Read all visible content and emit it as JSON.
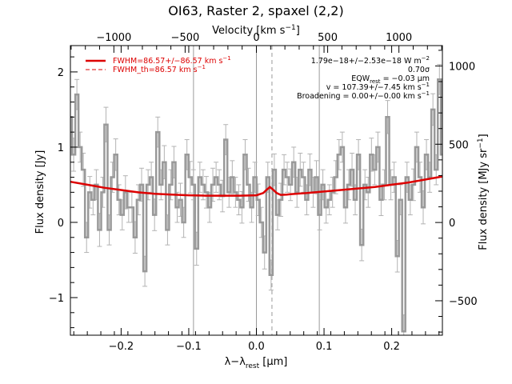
{
  "chart_data": {
    "type": "line",
    "title": "OI63, Raster 2, spaxel (2,2)",
    "xlabel": "λ−λ",
    "xlabel_sub": "rest",
    "xlabel_unit": " [μm]",
    "ylabel": "Flux density [Jy]",
    "x2label": "Velocity [km s",
    "x2label_sup": "−1",
    "x2label_end": "]",
    "y2label": "Flux density [MJy sr",
    "y2label_sup": "−1",
    "y2label_end": "]",
    "xlim": [
      -0.275,
      0.275
    ],
    "ylim": [
      -1.5,
      2.35
    ],
    "y2lim": [
      -720,
      1130
    ],
    "x2lim": [
      -1305,
      1305
    ],
    "grid": false,
    "x_ticks": [
      "−0.2",
      "−0.1",
      "0.0",
      "0.1",
      "0.2"
    ],
    "x_tick_values": [
      -0.2,
      -0.1,
      0.0,
      0.1,
      0.2
    ],
    "y_ticks": [
      "−1",
      "0",
      "1",
      "2"
    ],
    "y_tick_values": [
      -1,
      0,
      1,
      2
    ],
    "x2_ticks": [
      "−1000",
      "−500",
      "0",
      "500",
      "1000"
    ],
    "x2_tick_values": [
      -1000,
      -500,
      0,
      500,
      1000
    ],
    "y2_ticks": [
      "−500",
      "0",
      "500",
      "1000"
    ],
    "y2_tick_values": [
      -500,
      0,
      500,
      1000
    ],
    "vlines_solid": [
      -0.093,
      0.0,
      0.093
    ],
    "vline_dashed": 0.023,
    "annotations": {
      "line1": "1.79e−18+/−2.53e−18 W m",
      "line1_sup": "−2",
      "line2": "0.70σ",
      "line3": "EQW",
      "line3_sub": "rest",
      "line3_end": " = −0.03 μm",
      "line4": "v = 107.39+/−7.45 km s",
      "line4_sup": "−1",
      "line5": "Broadening = 0.00+/−0.00 km s",
      "line5_sup": "−1"
    },
    "legend": [
      {
        "label": "FWHM=86.57+/−86.57 km s",
        "sup": "−1",
        "style": "solid"
      },
      {
        "label": "FWHM_th=86.57 km s",
        "sup": "−1",
        "style": "dashed"
      }
    ],
    "series": [
      {
        "name": "Flux",
        "x": [
          -0.275,
          -0.2702,
          -0.2654,
          -0.2606,
          -0.2559,
          -0.2511,
          -0.2463,
          -0.2415,
          -0.2367,
          -0.2319,
          -0.2271,
          -0.2224,
          -0.2176,
          -0.2128,
          -0.208,
          -0.2032,
          -0.1984,
          -0.1936,
          -0.1889,
          -0.1841,
          -0.1793,
          -0.1745,
          -0.1697,
          -0.1649,
          -0.1601,
          -0.1554,
          -0.1506,
          -0.1458,
          -0.141,
          -0.1362,
          -0.1314,
          -0.1266,
          -0.1219,
          -0.1171,
          -0.1123,
          -0.1075,
          -0.1027,
          -0.0979,
          -0.0931,
          -0.0884,
          -0.0836,
          -0.0788,
          -0.074,
          -0.0692,
          -0.0644,
          -0.0596,
          -0.0549,
          -0.0501,
          -0.0453,
          -0.0405,
          -0.0357,
          -0.0309,
          -0.0261,
          -0.0214,
          -0.0166,
          -0.0118,
          -0.007,
          -0.0022,
          0.0026,
          0.0074,
          0.0121,
          0.0169,
          0.0217,
          0.0265,
          0.0313,
          0.0361,
          0.0409,
          0.0456,
          0.0504,
          0.0552,
          0.06,
          0.0648,
          0.0696,
          0.0744,
          0.0791,
          0.0839,
          0.0887,
          0.0935,
          0.0983,
          0.1031,
          0.1079,
          0.1126,
          0.1174,
          0.1222,
          0.127,
          0.1318,
          0.1366,
          0.1414,
          0.1461,
          0.1509,
          0.1557,
          0.1605,
          0.1653,
          0.1701,
          0.1749,
          0.1796,
          0.1844,
          0.1892,
          0.194,
          0.1988,
          0.2036,
          0.2084,
          0.2131,
          0.2179,
          0.2227,
          0.2275,
          0.2323,
          0.2371,
          0.2419,
          0.2466,
          0.2514,
          0.2562,
          0.261,
          0.2658,
          0.2706,
          0.275
        ],
        "y": [
          1.4,
          0.9,
          1.7,
          1.0,
          0.7,
          -0.2,
          0.4,
          0.3,
          0.5,
          -0.1,
          0.4,
          1.3,
          -0.1,
          0.6,
          0.9,
          0.3,
          0.1,
          0.4,
          0.2,
          0.2,
          -0.2,
          0.3,
          0.5,
          -0.65,
          0.5,
          0.6,
          0.1,
          1.2,
          0.5,
          0.8,
          -0.1,
          0.5,
          0.8,
          0.2,
          0.3,
          0.0,
          0.9,
          0.6,
          0.5,
          -0.35,
          0.6,
          0.5,
          0.4,
          0.2,
          0.5,
          0.6,
          0.5,
          0.35,
          1.1,
          0.4,
          0.6,
          0.4,
          0.3,
          0.2,
          0.9,
          0.5,
          0.2,
          0.6,
          0.3,
          0.0,
          -0.4,
          0.6,
          -0.7,
          0.7,
          0.1,
          0.3,
          0.7,
          0.6,
          0.5,
          0.8,
          0.4,
          0.7,
          0.6,
          0.3,
          0.7,
          0.4,
          0.6,
          0.1,
          0.5,
          0.2,
          0.3,
          0.4,
          0.6,
          0.9,
          1.0,
          0.2,
          0.5,
          0.7,
          0.3,
          0.9,
          -0.3,
          0.5,
          0.4,
          0.9,
          0.7,
          1.0,
          0.3,
          0.5,
          1.4,
          0.5,
          0.6,
          -0.45,
          0.3,
          -1.45,
          0.6,
          0.3,
          0.5,
          1.0,
          0.6,
          0.2,
          0.9,
          0.6,
          1.5,
          0.7,
          1.9,
          0.9
        ],
        "err": [
          0.2,
          0.22,
          0.2,
          0.2,
          0.22,
          0.2,
          0.21,
          0.2,
          0.2,
          0.22,
          0.2,
          0.23,
          0.2,
          0.2,
          0.21,
          0.2,
          0.2,
          0.22,
          0.2,
          0.2,
          0.21,
          0.2,
          0.22,
          0.2,
          0.2,
          0.2,
          0.21,
          0.2,
          0.2,
          0.22,
          0.2,
          0.2,
          0.21,
          0.2,
          0.22,
          0.2,
          0.2,
          0.21,
          0.2,
          0.22,
          0.2,
          0.2,
          0.21,
          0.2,
          0.22,
          0.2,
          0.2,
          0.21,
          0.2,
          0.2,
          0.22,
          0.2,
          0.2,
          0.21,
          0.2,
          0.22,
          0.2,
          0.2,
          0.21,
          0.2,
          0.22,
          0.2,
          0.2,
          0.21,
          0.2,
          0.22,
          0.2,
          0.2,
          0.21,
          0.2,
          0.2,
          0.22,
          0.2,
          0.2,
          0.21,
          0.2,
          0.22,
          0.2,
          0.2,
          0.21,
          0.2,
          0.2,
          0.22,
          0.2,
          0.2,
          0.21,
          0.2,
          0.22,
          0.2,
          0.2,
          0.21,
          0.2,
          0.2,
          0.22,
          0.2,
          0.2,
          0.21,
          0.2,
          0.22,
          0.2,
          0.2,
          0.21,
          0.2,
          0.22,
          0.2,
          0.2,
          0.21,
          0.2,
          0.2,
          0.22,
          0.2,
          0.2,
          0.21,
          0.2,
          0.2,
          0.2
        ]
      },
      {
        "name": "Fit",
        "x": [
          -0.275,
          -0.25,
          -0.225,
          -0.2,
          -0.175,
          -0.15,
          -0.125,
          -0.1,
          -0.075,
          -0.05,
          -0.025,
          0.0,
          0.01,
          0.016,
          0.02,
          0.024,
          0.03,
          0.036,
          0.045,
          0.05,
          0.075,
          0.1,
          0.125,
          0.15,
          0.175,
          0.2,
          0.225,
          0.25,
          0.275
        ],
        "y": [
          0.54,
          0.5,
          0.46,
          0.43,
          0.4,
          0.38,
          0.37,
          0.36,
          0.355,
          0.355,
          0.355,
          0.36,
          0.39,
          0.44,
          0.47,
          0.44,
          0.39,
          0.365,
          0.37,
          0.375,
          0.39,
          0.41,
          0.43,
          0.45,
          0.47,
          0.5,
          0.53,
          0.57,
          0.61
        ]
      }
    ],
    "colors": {
      "flux": "#999999",
      "error_bars": "#b3b3b3",
      "fit": "#dd0000",
      "vlines": "#9a9a9a",
      "axes": "#000000",
      "legend_text": "#dd0000"
    }
  }
}
